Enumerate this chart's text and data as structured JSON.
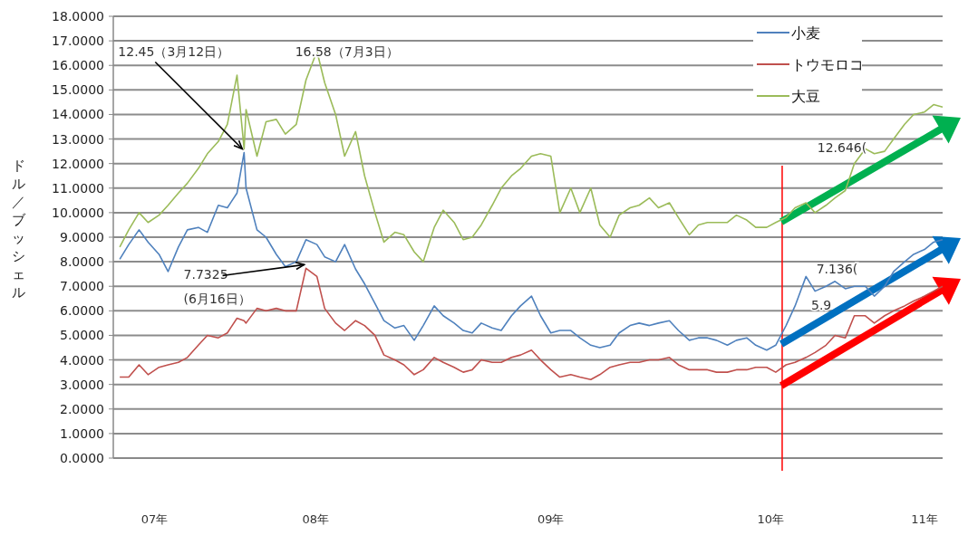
{
  "chart_data": {
    "type": "line",
    "ylabel": "ドル／ブッシェル",
    "x": [
      "2007-09-01",
      "2007-09-15",
      "2007-10-01",
      "2007-10-15",
      "2007-11-01",
      "2007-11-15",
      "2007-12-01",
      "2007-12-15",
      "2008-01-01",
      "2008-01-15",
      "2008-02-01",
      "2008-02-15",
      "2008-03-01",
      "2008-03-12",
      "2008-03-15",
      "2008-04-01",
      "2008-04-15",
      "2008-05-01",
      "2008-05-15",
      "2008-06-01",
      "2008-06-16",
      "2008-07-03",
      "2008-07-15",
      "2008-08-01",
      "2008-08-15",
      "2008-09-01",
      "2008-09-15",
      "2008-10-01",
      "2008-10-15",
      "2008-11-01",
      "2008-11-15",
      "2008-12-01",
      "2008-12-15",
      "2009-01-01",
      "2009-01-15",
      "2009-02-01",
      "2009-02-15",
      "2009-03-01",
      "2009-03-15",
      "2009-04-01",
      "2009-04-15",
      "2009-05-01",
      "2009-05-15",
      "2009-06-01",
      "2009-06-15",
      "2009-07-01",
      "2009-07-15",
      "2009-08-01",
      "2009-08-15",
      "2009-09-01",
      "2009-09-15",
      "2009-10-01",
      "2009-10-15",
      "2009-11-01",
      "2009-11-15",
      "2009-12-01",
      "2009-12-15",
      "2010-01-01",
      "2010-01-15",
      "2010-02-01",
      "2010-02-15",
      "2010-03-01",
      "2010-03-15",
      "2010-04-01",
      "2010-04-15",
      "2010-05-01",
      "2010-05-15",
      "2010-06-01",
      "2010-06-15",
      "2010-07-01",
      "2010-07-15",
      "2010-08-01",
      "2010-08-15",
      "2010-09-01",
      "2010-09-15",
      "2010-10-01",
      "2010-10-15",
      "2010-11-01",
      "2010-11-15",
      "2010-12-01",
      "2010-12-15",
      "2011-01-01",
      "2011-01-15",
      "2011-02-01",
      "2011-02-15",
      "2011-03-01"
    ],
    "series": [
      {
        "name": "小麦",
        "color": "#4f81bd",
        "values": [
          8.1,
          8.7,
          9.3,
          8.8,
          8.3,
          7.6,
          8.6,
          9.3,
          9.4,
          9.2,
          10.3,
          10.2,
          10.8,
          12.45,
          11.0,
          9.3,
          9.0,
          8.3,
          7.8,
          8.0,
          8.9,
          8.7,
          8.2,
          8.0,
          8.7,
          7.7,
          7.1,
          6.3,
          5.6,
          5.3,
          5.4,
          4.8,
          5.4,
          6.2,
          5.8,
          5.5,
          5.2,
          5.1,
          5.5,
          5.3,
          5.2,
          5.8,
          6.2,
          6.6,
          5.8,
          5.1,
          5.2,
          5.2,
          4.9,
          4.6,
          4.5,
          4.6,
          5.1,
          5.4,
          5.5,
          5.4,
          5.5,
          5.6,
          5.2,
          4.8,
          4.9,
          4.9,
          4.8,
          4.6,
          4.8,
          4.9,
          4.6,
          4.4,
          4.6,
          5.4,
          6.2,
          7.4,
          6.8,
          7.0,
          7.2,
          6.9,
          7.0,
          7.0,
          6.6,
          7.0,
          7.6,
          8.0,
          8.3,
          8.5,
          8.8,
          8.9
        ]
      },
      {
        "name": "トウモロコ",
        "color": "#c0504d",
        "values": [
          3.3,
          3.3,
          3.8,
          3.4,
          3.7,
          3.8,
          3.9,
          4.1,
          4.6,
          5.0,
          4.9,
          5.1,
          5.7,
          5.6,
          5.5,
          6.1,
          6.0,
          6.1,
          6.0,
          6.0,
          7.7325,
          7.4,
          6.1,
          5.5,
          5.2,
          5.6,
          5.4,
          5.0,
          4.2,
          4.0,
          3.8,
          3.4,
          3.6,
          4.1,
          3.9,
          3.7,
          3.5,
          3.6,
          4.0,
          3.9,
          3.9,
          4.1,
          4.2,
          4.4,
          4.0,
          3.6,
          3.3,
          3.4,
          3.3,
          3.2,
          3.4,
          3.7,
          3.8,
          3.9,
          3.9,
          4.0,
          4.0,
          4.1,
          3.8,
          3.6,
          3.6,
          3.6,
          3.5,
          3.5,
          3.6,
          3.6,
          3.7,
          3.7,
          3.5,
          3.8,
          3.9,
          4.1,
          4.3,
          4.6,
          5.0,
          4.9,
          5.8,
          5.8,
          5.5,
          5.8,
          6.0,
          6.2,
          6.4,
          6.6,
          6.8,
          7.0
        ]
      },
      {
        "name": "大豆",
        "color": "#9bbb59",
        "values": [
          8.6,
          9.3,
          10.0,
          9.6,
          9.9,
          10.3,
          10.8,
          11.2,
          11.8,
          12.4,
          12.9,
          13.6,
          15.6,
          12.6,
          14.2,
          12.3,
          13.7,
          13.8,
          13.2,
          13.6,
          15.4,
          16.58,
          15.3,
          14.0,
          12.3,
          13.3,
          11.5,
          10.0,
          8.8,
          9.2,
          9.1,
          8.4,
          8.0,
          9.4,
          10.1,
          9.6,
          8.9,
          9.0,
          9.5,
          10.3,
          11.0,
          11.5,
          11.8,
          12.3,
          12.4,
          12.3,
          10.0,
          11.0,
          10.0,
          11.0,
          9.5,
          9.0,
          9.9,
          10.2,
          10.3,
          10.6,
          10.2,
          10.4,
          9.8,
          9.1,
          9.5,
          9.6,
          9.6,
          9.6,
          9.9,
          9.7,
          9.4,
          9.4,
          9.6,
          9.8,
          10.2,
          10.4,
          10.0,
          10.3,
          10.6,
          10.9,
          12.0,
          12.6,
          12.4,
          12.5,
          13.0,
          13.6,
          14.0,
          14.1,
          14.4,
          14.3
        ]
      }
    ],
    "xlim": [
      "2007-08-22",
      "2011-03-01"
    ],
    "xticks": [
      {
        "value": "2007-10-25",
        "label": "07年"
      },
      {
        "value": "2008-07-01",
        "label": "08年"
      },
      {
        "value": "2009-07-01",
        "label": "09年"
      },
      {
        "value": "2010-06-07",
        "label": "10年"
      },
      {
        "value": "2011-02-01",
        "label": "11年"
      }
    ],
    "ylim": [
      0,
      18
    ],
    "yticks": [
      {
        "value": 0,
        "label": "0.0000"
      },
      {
        "value": 1,
        "label": "1.0000"
      },
      {
        "value": 2,
        "label": "2.0000"
      },
      {
        "value": 3,
        "label": "3.0000"
      },
      {
        "value": 4,
        "label": "4.0000"
      },
      {
        "value": 5,
        "label": "5.0000"
      },
      {
        "value": 6,
        "label": "6.0000"
      },
      {
        "value": 7,
        "label": "7.0000"
      },
      {
        "value": 8,
        "label": "8.0000"
      },
      {
        "value": 9,
        "label": "9.0000"
      },
      {
        "value": 10,
        "label": "10.0000"
      },
      {
        "value": 11,
        "label": "11.0000"
      },
      {
        "value": 12,
        "label": "12.0000"
      },
      {
        "value": 13,
        "label": "13.0000"
      },
      {
        "value": 14,
        "label": "14.0000"
      },
      {
        "value": 15,
        "label": "15.0000"
      },
      {
        "value": 16,
        "label": "16.0000"
      },
      {
        "value": 17,
        "label": "17.0000"
      },
      {
        "value": 18,
        "label": "18.0000"
      }
    ],
    "grid": "y",
    "legend": "top right",
    "ref_lines": [
      {
        "axis": "x",
        "value": "2010-06-25",
        "color": "#ff0000"
      }
    ],
    "annotations": [
      {
        "text": "12.45（3月12日）",
        "x": "2008-03-12",
        "y": 12.45
      },
      {
        "text": "16.58（7月3日）",
        "x": "2008-07-03",
        "y": 16.58
      },
      {
        "text": "7.7325\n(6月16日）",
        "x": "2008-06-16",
        "y": 7.7325
      },
      {
        "text": "12.646(",
        "x": "2010-11-20",
        "y": 12.646
      },
      {
        "text": "7.136(",
        "x": "2010-09-10",
        "y": 7.136
      },
      "5.9"
    ]
  }
}
